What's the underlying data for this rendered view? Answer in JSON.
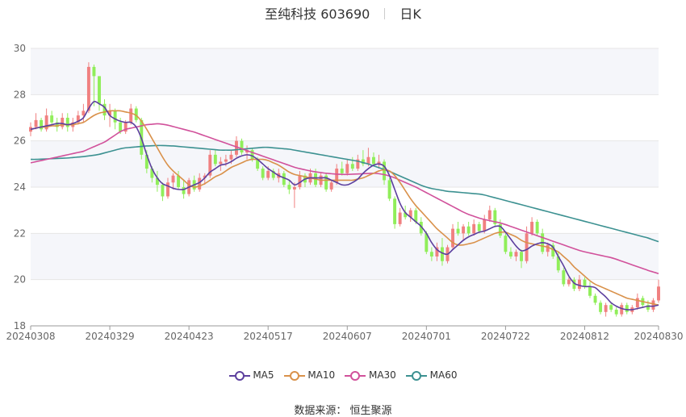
{
  "header": {
    "title": "至纯科技 603690",
    "period": "日K"
  },
  "source": "数据来源：  恒生聚源",
  "chart_data": {
    "type": "candlestick",
    "ylim": [
      18,
      30
    ],
    "y_ticks": [
      "18",
      "20",
      "22",
      "24",
      "26",
      "28",
      "30"
    ],
    "x_tick_labels": [
      "20240308",
      "20240329",
      "20240423",
      "20240517",
      "20240607",
      "20240701",
      "20240722",
      "20240812",
      "20240830"
    ],
    "x_tick_indices": [
      0,
      15,
      30,
      45,
      60,
      75,
      90,
      105,
      119
    ],
    "legend": [
      "MA5",
      "MA10",
      "MA30",
      "MA60"
    ],
    "colors": {
      "up": "#f08080",
      "down": "#90ee5a",
      "MA5": "#5c3f9e",
      "MA10": "#d9914a",
      "MA30": "#d1519b",
      "MA60": "#3c9191",
      "grid": "#e6e6e6",
      "band": "#f5f6fa"
    },
    "ohlc": [
      [
        26.4,
        26.8,
        26.2,
        26.6
      ],
      [
        26.6,
        27.2,
        26.5,
        26.9
      ],
      [
        26.9,
        27.0,
        26.4,
        26.5
      ],
      [
        26.5,
        27.4,
        26.4,
        27.1
      ],
      [
        27.1,
        27.3,
        26.7,
        26.8
      ],
      [
        26.8,
        27.0,
        26.4,
        26.6
      ],
      [
        26.6,
        27.2,
        26.5,
        27.0
      ],
      [
        27.0,
        27.2,
        26.4,
        26.6
      ],
      [
        26.6,
        27.0,
        26.4,
        26.8
      ],
      [
        26.8,
        27.3,
        26.7,
        27.1
      ],
      [
        27.1,
        27.6,
        26.8,
        27.3
      ],
      [
        27.3,
        29.4,
        27.2,
        29.2
      ],
      [
        29.2,
        29.3,
        27.5,
        28.8
      ],
      [
        28.8,
        28.8,
        27.3,
        27.6
      ],
      [
        27.6,
        27.8,
        26.9,
        27.1
      ],
      [
        27.1,
        27.6,
        26.6,
        27.3
      ],
      [
        27.3,
        27.4,
        26.5,
        26.8
      ],
      [
        26.8,
        27.0,
        26.3,
        26.4
      ],
      [
        26.4,
        26.9,
        26.3,
        26.8
      ],
      [
        26.8,
        27.6,
        26.7,
        27.4
      ],
      [
        27.4,
        27.5,
        26.8,
        26.9
      ],
      [
        26.9,
        27.0,
        25.2,
        25.4
      ],
      [
        25.4,
        25.6,
        24.6,
        24.8
      ],
      [
        24.8,
        24.9,
        24.2,
        24.4
      ],
      [
        24.4,
        24.7,
        23.8,
        24.1
      ],
      [
        24.1,
        24.2,
        23.4,
        23.6
      ],
      [
        23.6,
        24.4,
        23.5,
        24.2
      ],
      [
        24.2,
        24.6,
        23.9,
        24.5
      ],
      [
        24.5,
        24.7,
        23.9,
        24.0
      ],
      [
        24.0,
        24.3,
        23.5,
        23.7
      ],
      [
        23.7,
        24.4,
        23.6,
        24.3
      ],
      [
        24.3,
        24.5,
        23.8,
        23.9
      ],
      [
        23.9,
        24.6,
        23.8,
        24.4
      ],
      [
        24.4,
        24.6,
        24.1,
        24.5
      ],
      [
        24.5,
        25.6,
        24.4,
        25.4
      ],
      [
        25.4,
        25.6,
        24.9,
        25.0
      ],
      [
        25.0,
        25.3,
        24.7,
        25.1
      ],
      [
        25.1,
        25.4,
        24.9,
        25.2
      ],
      [
        25.2,
        25.6,
        25.0,
        25.4
      ],
      [
        25.4,
        26.2,
        25.3,
        26.0
      ],
      [
        26.0,
        26.1,
        25.4,
        25.5
      ],
      [
        25.5,
        25.8,
        25.2,
        25.6
      ],
      [
        25.6,
        25.7,
        25.1,
        25.2
      ],
      [
        25.2,
        25.3,
        24.7,
        24.8
      ],
      [
        24.8,
        24.9,
        24.3,
        24.4
      ],
      [
        24.4,
        24.9,
        24.3,
        24.7
      ],
      [
        24.7,
        24.8,
        24.3,
        24.4
      ],
      [
        24.4,
        24.8,
        24.2,
        24.6
      ],
      [
        24.6,
        24.7,
        24.0,
        24.1
      ],
      [
        24.1,
        24.3,
        23.7,
        23.9
      ],
      [
        23.9,
        24.2,
        23.1,
        24.0
      ],
      [
        24.0,
        24.7,
        23.9,
        24.5
      ],
      [
        24.5,
        24.6,
        24.0,
        24.2
      ],
      [
        24.2,
        24.8,
        24.1,
        24.6
      ],
      [
        24.6,
        24.8,
        24.0,
        24.1
      ],
      [
        24.1,
        24.6,
        24.0,
        24.5
      ],
      [
        24.5,
        24.6,
        23.8,
        23.9
      ],
      [
        23.9,
        24.3,
        23.8,
        24.2
      ],
      [
        24.2,
        25.0,
        24.1,
        24.8
      ],
      [
        24.8,
        25.1,
        24.5,
        24.6
      ],
      [
        24.6,
        25.2,
        24.5,
        25.0
      ],
      [
        25.0,
        25.3,
        24.7,
        24.8
      ],
      [
        24.8,
        25.4,
        24.7,
        25.2
      ],
      [
        25.2,
        25.6,
        24.9,
        25.0
      ],
      [
        25.0,
        25.7,
        24.9,
        25.3
      ],
      [
        25.3,
        25.5,
        24.9,
        25.0
      ],
      [
        25.0,
        25.4,
        24.8,
        25.1
      ],
      [
        25.1,
        25.2,
        24.1,
        24.3
      ],
      [
        24.3,
        24.4,
        23.4,
        23.5
      ],
      [
        23.5,
        23.6,
        22.2,
        22.4
      ],
      [
        22.4,
        23.1,
        22.3,
        22.9
      ],
      [
        22.9,
        23.2,
        22.6,
        22.7
      ],
      [
        22.7,
        23.1,
        22.5,
        23.0
      ],
      [
        23.0,
        23.1,
        22.4,
        22.5
      ],
      [
        22.5,
        22.7,
        21.9,
        22.0
      ],
      [
        22.0,
        22.1,
        21.1,
        21.2
      ],
      [
        21.2,
        21.4,
        20.8,
        21.0
      ],
      [
        21.0,
        21.6,
        20.8,
        21.4
      ],
      [
        21.4,
        21.8,
        20.6,
        20.8
      ],
      [
        20.8,
        21.5,
        20.7,
        21.4
      ],
      [
        21.4,
        22.4,
        21.3,
        22.2
      ],
      [
        22.2,
        22.5,
        21.9,
        22.0
      ],
      [
        22.0,
        22.4,
        21.7,
        22.3
      ],
      [
        22.3,
        22.5,
        21.9,
        22.0
      ],
      [
        22.0,
        22.6,
        21.9,
        22.4
      ],
      [
        22.4,
        22.5,
        22.0,
        22.1
      ],
      [
        22.1,
        22.8,
        22.0,
        22.6
      ],
      [
        22.6,
        23.2,
        22.5,
        23.0
      ],
      [
        23.0,
        23.1,
        22.3,
        22.4
      ],
      [
        22.4,
        22.6,
        21.8,
        21.9
      ],
      [
        21.9,
        22.0,
        21.1,
        21.2
      ],
      [
        21.2,
        21.4,
        20.9,
        21.0
      ],
      [
        21.0,
        21.3,
        20.8,
        21.2
      ],
      [
        21.2,
        21.3,
        20.5,
        20.8
      ],
      [
        20.8,
        22.3,
        20.7,
        22.0
      ],
      [
        22.0,
        22.7,
        21.9,
        22.5
      ],
      [
        22.5,
        22.6,
        21.9,
        22.0
      ],
      [
        22.0,
        22.2,
        21.1,
        21.2
      ],
      [
        21.2,
        21.6,
        21.0,
        21.5
      ],
      [
        21.5,
        21.6,
        20.9,
        21.0
      ],
      [
        21.0,
        21.2,
        20.3,
        20.4
      ],
      [
        20.4,
        20.5,
        19.7,
        19.8
      ],
      [
        19.8,
        20.1,
        19.7,
        20.0
      ],
      [
        20.0,
        20.1,
        19.5,
        19.6
      ],
      [
        19.6,
        20.2,
        19.5,
        20.0
      ],
      [
        20.0,
        20.1,
        19.6,
        19.7
      ],
      [
        19.7,
        19.9,
        19.2,
        19.3
      ],
      [
        19.3,
        19.4,
        18.9,
        19.0
      ],
      [
        19.0,
        19.1,
        18.5,
        18.6
      ],
      [
        18.6,
        19.0,
        18.4,
        18.9
      ],
      [
        18.9,
        19.0,
        18.6,
        18.7
      ],
      [
        18.7,
        18.8,
        18.4,
        18.5
      ],
      [
        18.5,
        19.0,
        18.4,
        18.9
      ],
      [
        18.9,
        19.0,
        18.5,
        18.6
      ],
      [
        18.6,
        18.9,
        18.5,
        18.8
      ],
      [
        18.8,
        19.4,
        18.7,
        19.2
      ],
      [
        19.2,
        19.3,
        18.8,
        18.9
      ],
      [
        18.9,
        19.1,
        18.6,
        18.7
      ],
      [
        18.7,
        19.2,
        18.6,
        19.1
      ],
      [
        19.1,
        20.0,
        19.0,
        19.7
      ]
    ],
    "ma5": [
      26.5,
      26.55,
      26.6,
      26.65,
      26.7,
      26.75,
      26.75,
      26.7,
      26.75,
      26.85,
      27.0,
      27.4,
      27.7,
      27.6,
      27.45,
      27.1,
      26.95,
      26.85,
      26.8,
      26.8,
      26.6,
      26.1,
      25.4,
      24.8,
      24.4,
      24.15,
      24.05,
      23.95,
      23.9,
      23.9,
      24.0,
      24.1,
      24.2,
      24.4,
      24.65,
      24.8,
      24.95,
      25.0,
      25.1,
      25.25,
      25.35,
      25.4,
      25.35,
      25.2,
      25.0,
      24.8,
      24.65,
      24.5,
      24.4,
      24.3,
      24.1,
      24.2,
      24.35,
      24.4,
      24.4,
      24.4,
      24.4,
      24.3,
      24.2,
      24.1,
      24.1,
      24.2,
      24.35,
      24.6,
      24.8,
      24.95,
      25.0,
      24.9,
      24.5,
      23.9,
      23.3,
      22.9,
      22.7,
      22.5,
      22.3,
      22.0,
      21.6,
      21.3,
      21.15,
      21.1,
      21.3,
      21.5,
      21.7,
      21.85,
      21.95,
      22.05,
      22.1,
      22.2,
      22.3,
      22.3,
      22.05,
      21.75,
      21.45,
      21.25,
      21.3,
      21.45,
      21.55,
      21.6,
      21.55,
      21.4,
      21.0,
      20.6,
      20.15,
      19.85,
      19.75,
      19.7,
      19.7,
      19.65,
      19.45,
      19.25,
      19.0,
      18.85,
      18.75,
      18.7,
      18.7,
      18.75,
      18.8,
      18.85,
      18.85,
      18.9
    ],
    "ma10": [
      26.5,
      26.55,
      26.6,
      26.6,
      26.65,
      26.65,
      26.7,
      26.7,
      26.7,
      26.75,
      26.8,
      26.95,
      27.1,
      27.2,
      27.25,
      27.3,
      27.3,
      27.3,
      27.25,
      27.2,
      27.1,
      26.85,
      26.5,
      26.1,
      25.7,
      25.3,
      24.95,
      24.7,
      24.5,
      24.3,
      24.1,
      24.0,
      24.05,
      24.15,
      24.3,
      24.45,
      24.55,
      24.7,
      24.85,
      24.95,
      25.05,
      25.15,
      25.2,
      25.2,
      25.2,
      25.15,
      25.05,
      24.95,
      24.8,
      24.65,
      24.55,
      24.5,
      24.45,
      24.4,
      24.35,
      24.3,
      24.3,
      24.3,
      24.3,
      24.3,
      24.3,
      24.3,
      24.35,
      24.4,
      24.5,
      24.6,
      24.7,
      24.75,
      24.7,
      24.5,
      24.2,
      23.85,
      23.5,
      23.2,
      22.95,
      22.7,
      22.45,
      22.2,
      22.0,
      21.8,
      21.6,
      21.5,
      21.5,
      21.55,
      21.6,
      21.7,
      21.8,
      21.9,
      22.0,
      22.05,
      22.05,
      21.95,
      21.85,
      21.7,
      21.6,
      21.55,
      21.5,
      21.45,
      21.4,
      21.3,
      21.2,
      21.0,
      20.8,
      20.55,
      20.35,
      20.15,
      19.95,
      19.8,
      19.7,
      19.6,
      19.5,
      19.4,
      19.3,
      19.2,
      19.15,
      19.1,
      19.05,
      19.0,
      18.95,
      18.9
    ],
    "ma30": [
      25.05,
      25.1,
      25.15,
      25.2,
      25.25,
      25.3,
      25.35,
      25.4,
      25.45,
      25.5,
      25.55,
      25.65,
      25.75,
      25.85,
      25.95,
      26.1,
      26.25,
      26.4,
      26.5,
      26.55,
      26.6,
      26.65,
      26.7,
      26.72,
      26.74,
      26.72,
      26.68,
      26.62,
      26.56,
      26.5,
      26.44,
      26.38,
      26.3,
      26.22,
      26.14,
      26.06,
      25.98,
      25.9,
      25.82,
      25.74,
      25.66,
      25.58,
      25.5,
      25.42,
      25.34,
      25.26,
      25.18,
      25.1,
      25.02,
      24.94,
      24.86,
      24.8,
      24.75,
      24.7,
      24.66,
      24.63,
      24.6,
      24.58,
      24.56,
      24.55,
      24.55,
      24.56,
      24.57,
      24.58,
      24.59,
      24.6,
      24.58,
      24.54,
      24.48,
      24.4,
      24.3,
      24.2,
      24.1,
      24.0,
      23.88,
      23.76,
      23.64,
      23.52,
      23.4,
      23.28,
      23.16,
      23.04,
      22.92,
      22.82,
      22.74,
      22.66,
      22.6,
      22.55,
      22.5,
      22.45,
      22.38,
      22.3,
      22.22,
      22.14,
      22.06,
      21.98,
      21.9,
      21.82,
      21.74,
      21.66,
      21.58,
      21.5,
      21.42,
      21.34,
      21.26,
      21.2,
      21.15,
      21.1,
      21.05,
      21.0,
      20.95,
      20.88,
      20.8,
      20.72,
      20.64,
      20.56,
      20.48,
      20.4,
      20.33,
      20.26
    ],
    "ma60": [
      25.2,
      25.2,
      25.21,
      25.22,
      25.23,
      25.24,
      25.25,
      25.26,
      25.28,
      25.3,
      25.32,
      25.35,
      25.38,
      25.42,
      25.48,
      25.54,
      25.6,
      25.66,
      25.7,
      25.72,
      25.74,
      25.76,
      25.78,
      25.79,
      25.8,
      25.8,
      25.79,
      25.78,
      25.76,
      25.74,
      25.72,
      25.7,
      25.68,
      25.66,
      25.64,
      25.62,
      25.6,
      25.6,
      25.6,
      25.62,
      25.64,
      25.66,
      25.68,
      25.7,
      25.72,
      25.72,
      25.7,
      25.68,
      25.66,
      25.64,
      25.6,
      25.56,
      25.52,
      25.48,
      25.44,
      25.4,
      25.36,
      25.32,
      25.28,
      25.24,
      25.2,
      25.16,
      25.12,
      25.06,
      25.0,
      24.92,
      24.84,
      24.76,
      24.68,
      24.58,
      24.48,
      24.38,
      24.28,
      24.18,
      24.08,
      24.0,
      23.94,
      23.9,
      23.86,
      23.82,
      23.8,
      23.78,
      23.76,
      23.74,
      23.72,
      23.7,
      23.66,
      23.6,
      23.54,
      23.48,
      23.42,
      23.36,
      23.3,
      23.24,
      23.18,
      23.12,
      23.06,
      23.0,
      22.94,
      22.88,
      22.82,
      22.76,
      22.7,
      22.64,
      22.58,
      22.52,
      22.46,
      22.4,
      22.34,
      22.28,
      22.22,
      22.16,
      22.1,
      22.04,
      21.98,
      21.92,
      21.86,
      21.8,
      21.72,
      21.64
    ]
  }
}
